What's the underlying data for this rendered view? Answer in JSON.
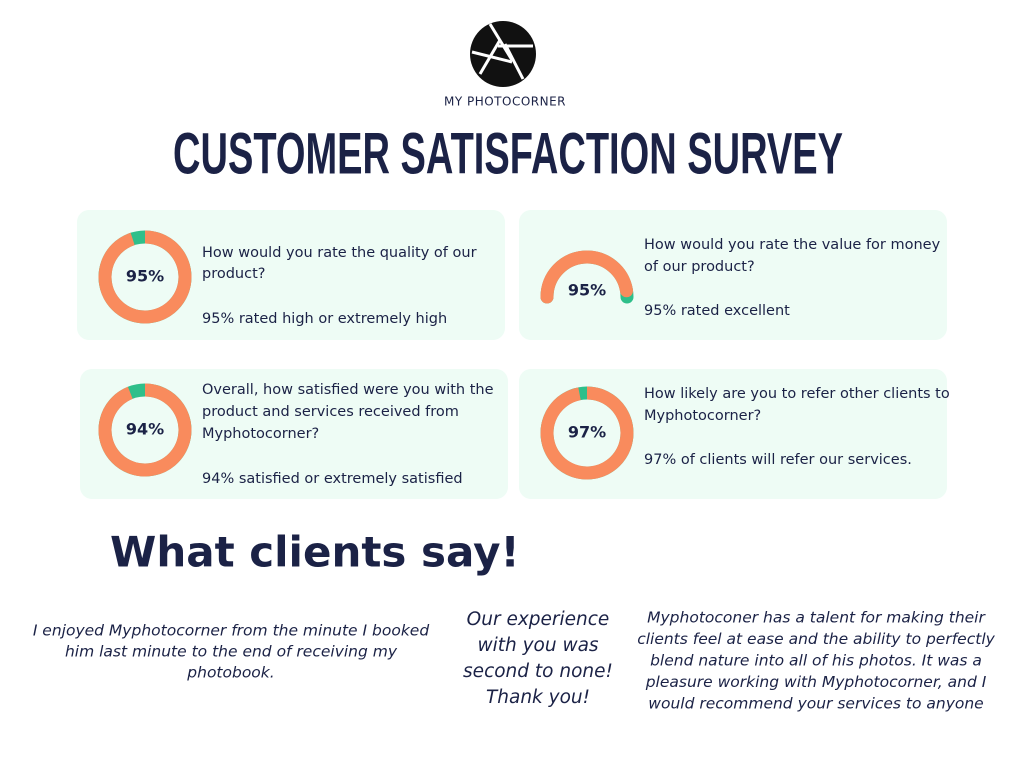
{
  "header": {
    "brand": "MY PHOTOCORNER",
    "title": "CUSTOMER SATISFACTION SURVEY"
  },
  "cards": [
    {
      "chart": "donut",
      "percent": {
        "value": 95,
        "label": "95%"
      },
      "question": [
        "How would you rate the quality of our",
        "product?"
      ],
      "summary": "95% rated high or extremely high"
    },
    {
      "chart": "gauge",
      "percent": {
        "value": 95,
        "label": "95%"
      },
      "question": [
        "How would you rate the value for money",
        "of our product?"
      ],
      "summary": "95% rated excellent"
    },
    {
      "chart": "donut",
      "percent": {
        "value": 94,
        "label": "94%"
      },
      "question": [
        "Overall, how satisfied were you with the",
        "product and services received from",
        "Myphotocorner?"
      ],
      "summary": "94% satisfied or extremely satisfied"
    },
    {
      "chart": "donut",
      "percent": {
        "value": 97,
        "label": "97%"
      },
      "question": [
        "How likely are you to refer other clients to",
        "Myphotocorner?"
      ],
      "summary": "97% of clients will refer our services."
    }
  ],
  "testimonials": {
    "heading": "What clients say!",
    "quotes": [
      [
        "I enjoyed Myphotocorner from the minute I booked",
        "him last minute to the end of receiving my",
        "photobook."
      ],
      [
        "Our experience",
        "with you was",
        "second to none!",
        "Thank you!"
      ],
      [
        "Myphotoconer has a talent for making their",
        "clients feel at ease and the ability to perfectly",
        "blend nature into all of his photos. It was a",
        "pleasure working with Myphotocorner, and I",
        "would recommend your services to anyone"
      ]
    ]
  }
}
